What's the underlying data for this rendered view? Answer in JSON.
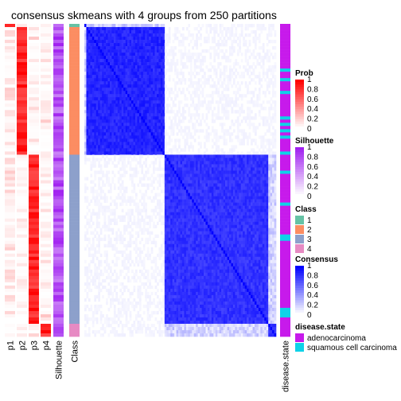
{
  "title": "consensus skmeans with 4 groups from 250 partitions",
  "colors": {
    "prob_high": "#ff0000",
    "prob_low": "#ffffff",
    "silhouette_high": "#a020f0",
    "silhouette_low": "#ffffff",
    "consensus_high": "#0000ff",
    "consensus_low": "#ffffff",
    "class_1": "#66c2a5",
    "class_2": "#fc8d62",
    "class_3": "#8da0cb",
    "class_4": "#e78ac3",
    "adenocarcinoma": "#c71aeb",
    "squamous": "#0ed2e8"
  },
  "chart_data": {
    "type": "heatmap",
    "title": "consensus skmeans with 4 groups from 250 partitions",
    "column_labels": [
      "p1",
      "p2",
      "p3",
      "p4",
      "Silhouette",
      "Class",
      "disease.state"
    ],
    "n_samples": 98,
    "cluster_order": [
      1,
      2,
      3,
      4
    ],
    "cluster_sizes": [
      1,
      40,
      53,
      4
    ],
    "legends": {
      "prob": {
        "title": "Prob",
        "ticks": [
          "1",
          "0.8",
          "0.6",
          "0.4",
          "0.2",
          "0"
        ]
      },
      "silhouette": {
        "title": "Silhouette",
        "ticks": [
          "1",
          "0.8",
          "0.6",
          "0.4",
          "0.2",
          "0"
        ]
      },
      "class": {
        "title": "Class",
        "items": [
          "1",
          "2",
          "3",
          "4"
        ]
      },
      "consensus": {
        "title": "Consensus",
        "ticks": [
          "1",
          "0.8",
          "0.6",
          "0.4",
          "0.2",
          "0"
        ]
      },
      "disease_state": {
        "title": "disease.state",
        "items": [
          "adenocarcinoma",
          "squamous cell carcinoma"
        ]
      }
    },
    "legend_placement": "right",
    "grid": false
  }
}
